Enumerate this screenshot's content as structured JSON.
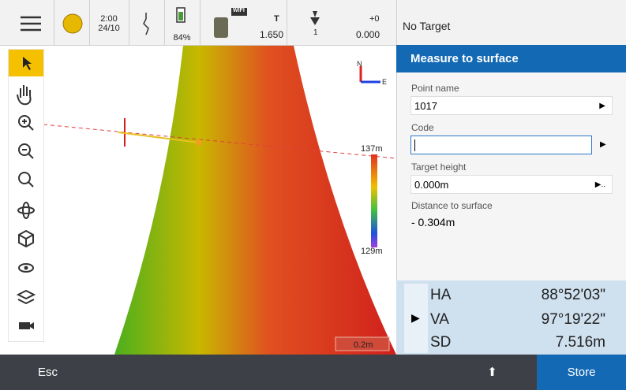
{
  "status_bar": {
    "time": "2:00",
    "date": "24/10",
    "battery": "84%",
    "radio": "WIFI",
    "target_label": "T",
    "target_height": "1.650",
    "offset": "+0",
    "offset_value": "0.000",
    "lock": "1",
    "target_status": "No Target"
  },
  "map": {
    "north": "N",
    "east": "E",
    "scale_max": "137m",
    "scale_min": "129m",
    "scale_bar": "0.2m"
  },
  "panel": {
    "title": "Measure to surface",
    "fields": [
      {
        "label": "Point name",
        "value": "1017"
      },
      {
        "label": "Code"
      },
      {
        "label": "Target height",
        "value": "0.000m"
      }
    ],
    "distance_label": "Distance to surface",
    "distance": "- 0.304m"
  },
  "readouts": [
    {
      "label": "HA",
      "value": "88°52'03\""
    },
    {
      "label": "VA",
      "value": "97°19'22\""
    },
    {
      "label": "SD",
      "value": "7.516m"
    }
  ],
  "softkeys": {
    "escape": "Esc",
    "store": "Store"
  }
}
